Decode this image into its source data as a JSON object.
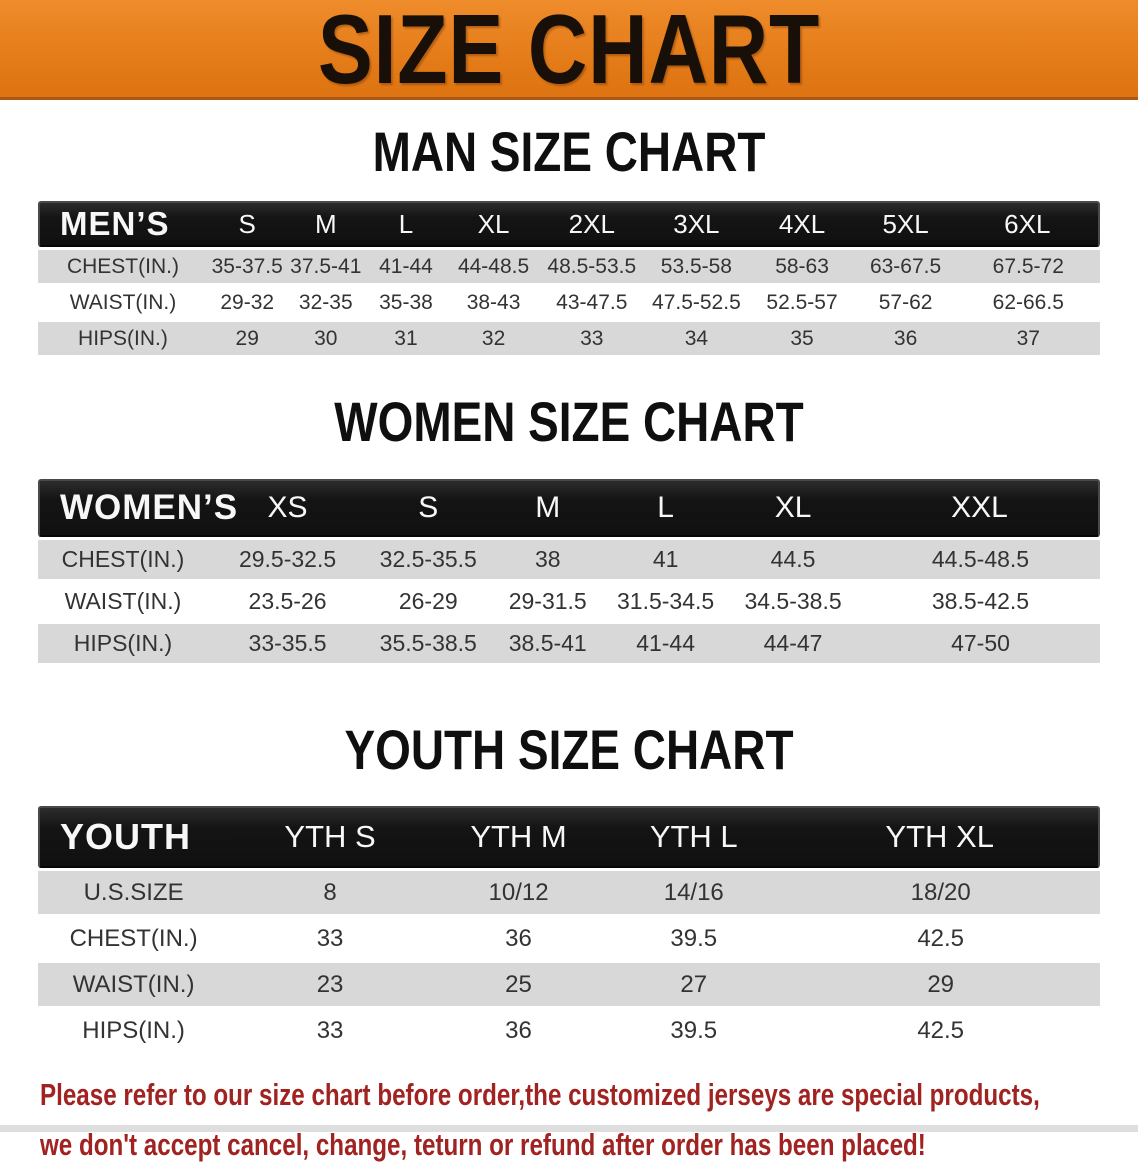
{
  "banner": {
    "title": "SIZE CHART",
    "background": "#e57d1a",
    "text_color": "#181008"
  },
  "colors": {
    "header_bar": "#141414",
    "stripe_row": "#d8d8d8",
    "disclaimer_red": "#a02321"
  },
  "sections": [
    {
      "heading": "MAN SIZE CHART",
      "group_label": "MEN’S",
      "columns": [
        "S",
        "M",
        "L",
        "XL",
        "2XL",
        "3XL",
        "4XL",
        "5XL",
        "6XL"
      ],
      "rows": [
        {
          "label": "CHEST(IN.)",
          "values": [
            "35-37.5",
            "37.5-41",
            "41-44",
            "44-48.5",
            "48.5-53.5",
            "53.5-58",
            "58-63",
            "63-67.5",
            "67.5-72"
          ]
        },
        {
          "label": "WAIST(IN.)",
          "values": [
            "29-32",
            "32-35",
            "35-38",
            "38-43",
            "43-47.5",
            "47.5-52.5",
            "52.5-57",
            "57-62",
            "62-66.5"
          ]
        },
        {
          "label": "HIPS(IN.)",
          "values": [
            "29",
            "30",
            "31",
            "32",
            "33",
            "34",
            "35",
            "36",
            "37"
          ]
        }
      ]
    },
    {
      "heading": "WOMEN SIZE CHART",
      "group_label": "WOMEN’S",
      "columns": [
        "XS",
        "S",
        "M",
        "L",
        "XL",
        "XXL"
      ],
      "rows": [
        {
          "label": "CHEST(IN.)",
          "values": [
            "29.5-32.5",
            "32.5-35.5",
            "38",
            "41",
            "44.5",
            "44.5-48.5"
          ]
        },
        {
          "label": "WAIST(IN.)",
          "values": [
            "23.5-26",
            "26-29",
            "29-31.5",
            "31.5-34.5",
            "34.5-38.5",
            "38.5-42.5"
          ]
        },
        {
          "label": "HIPS(IN.)",
          "values": [
            "33-35.5",
            "35.5-38.5",
            "38.5-41",
            "41-44",
            "44-47",
            "47-50"
          ]
        }
      ]
    },
    {
      "heading": "YOUTH SIZE CHART",
      "group_label": "YOUTH",
      "columns": [
        "YTH S",
        "YTH M",
        "YTH L",
        "YTH XL"
      ],
      "rows": [
        {
          "label": "U.S.SIZE",
          "values": [
            "8",
            "10/12",
            "14/16",
            "18/20"
          ]
        },
        {
          "label": "CHEST(IN.)",
          "values": [
            "33",
            "36",
            "39.5",
            "42.5"
          ]
        },
        {
          "label": "WAIST(IN.)",
          "values": [
            "23",
            "25",
            "27",
            "29"
          ]
        },
        {
          "label": "HIPS(IN.)",
          "values": [
            "33",
            "36",
            "39.5",
            "42.5"
          ]
        }
      ]
    }
  ],
  "footer": {
    "line1": "Please refer to our size chart before order,the customized jerseys are special products,",
    "line2": "we don't accept cancel, change, teturn or refund after order has been placed!"
  }
}
